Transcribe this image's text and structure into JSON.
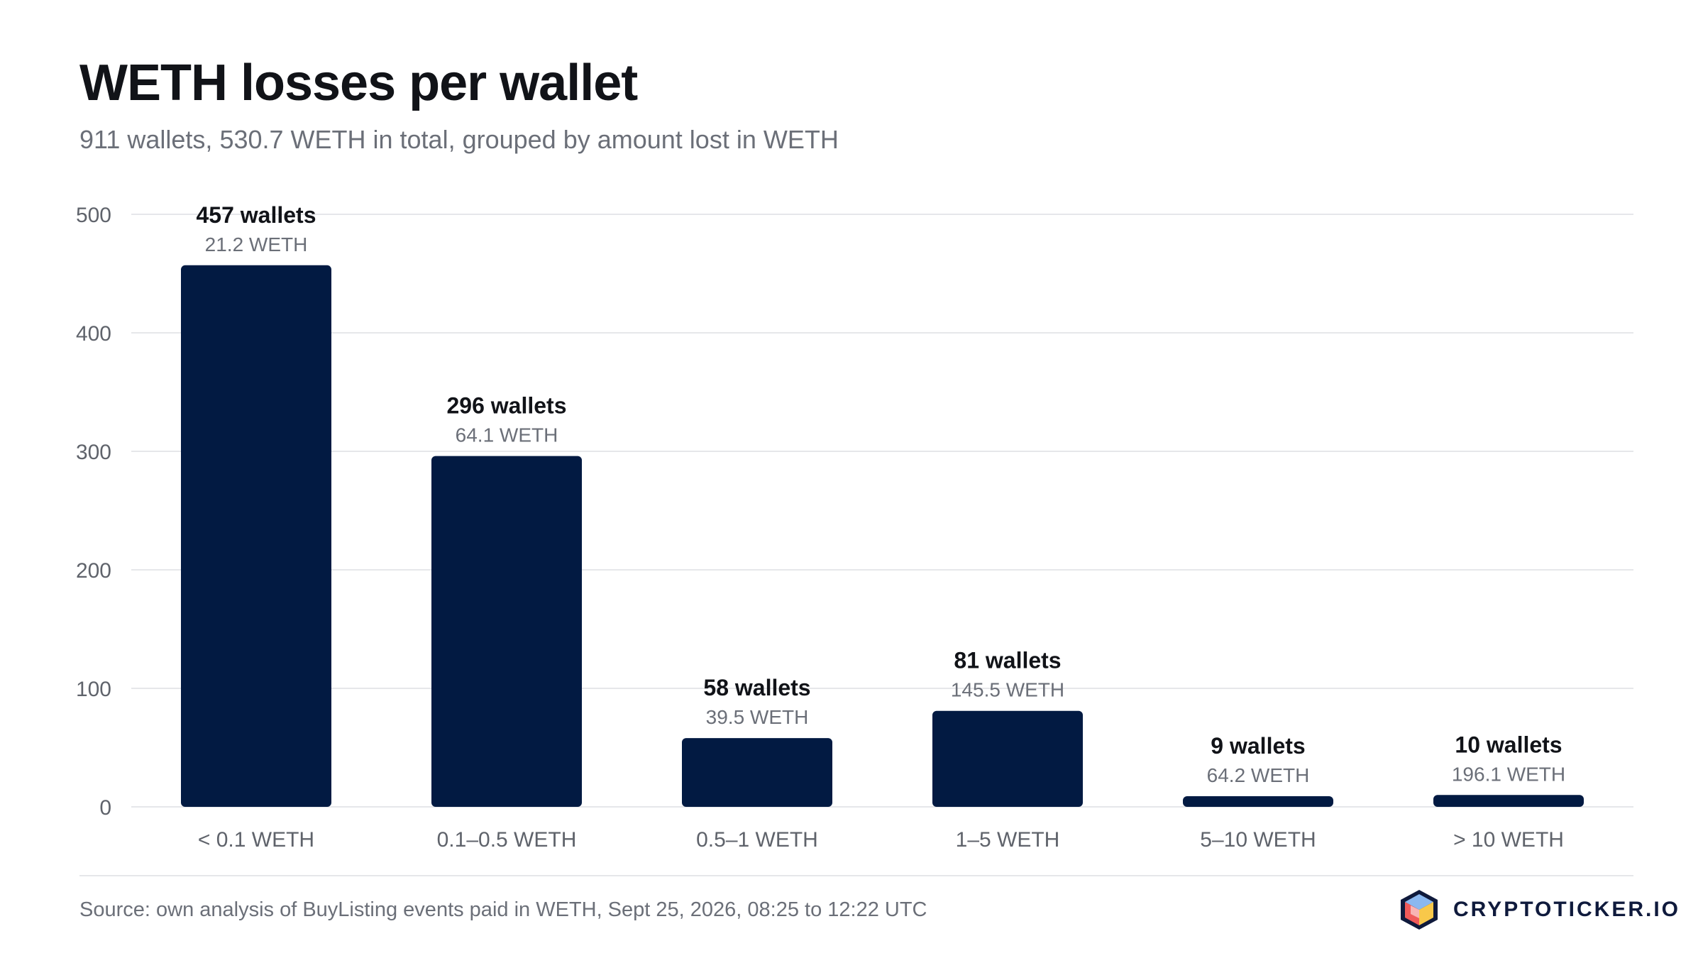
{
  "header": {
    "title": "WETH losses per wallet",
    "subtitle": "911 wallets, 530.7 WETH in total, grouped by amount lost in WETH"
  },
  "chart_data": {
    "type": "bar",
    "title": "WETH losses per wallet",
    "subtitle": "911 wallets, 530.7 WETH in total, grouped by amount lost in WETH",
    "categories": [
      "< 0.1 WETH",
      "0.1–0.5 WETH",
      "0.5–1 WETH",
      "1–5 WETH",
      "5–10 WETH",
      "> 10 WETH"
    ],
    "values": [
      457,
      296,
      58,
      81,
      9,
      10
    ],
    "data_labels": [
      "457 wallets",
      "296 wallets",
      "58 wallets",
      "81 wallets",
      "9 wallets",
      "10 wallets"
    ],
    "secondary_labels": [
      "21.2 WETH",
      "64.1 WETH",
      "39.5 WETH",
      "145.5 WETH",
      "64.2 WETH",
      "196.1 WETH"
    ],
    "ylim": [
      0,
      500
    ],
    "yticks": [
      0,
      100,
      200,
      300,
      400,
      500
    ],
    "xlabel": "",
    "ylabel": "",
    "grid": true,
    "legend": "none",
    "colors": {
      "bar": "#021a42",
      "grid": "#e6e7ea",
      "axis_text": "#5f636b",
      "label_primary": "#111318",
      "label_secondary": "#6b6f78"
    }
  },
  "footer": {
    "source": "Source: own analysis of BuyListing events paid in WETH, Sept 25, 2026, 08:25 to 12:22 UTC",
    "brand": "CRYPTOTICKER.IO",
    "logo_icon": "cube-logo-icon"
  }
}
